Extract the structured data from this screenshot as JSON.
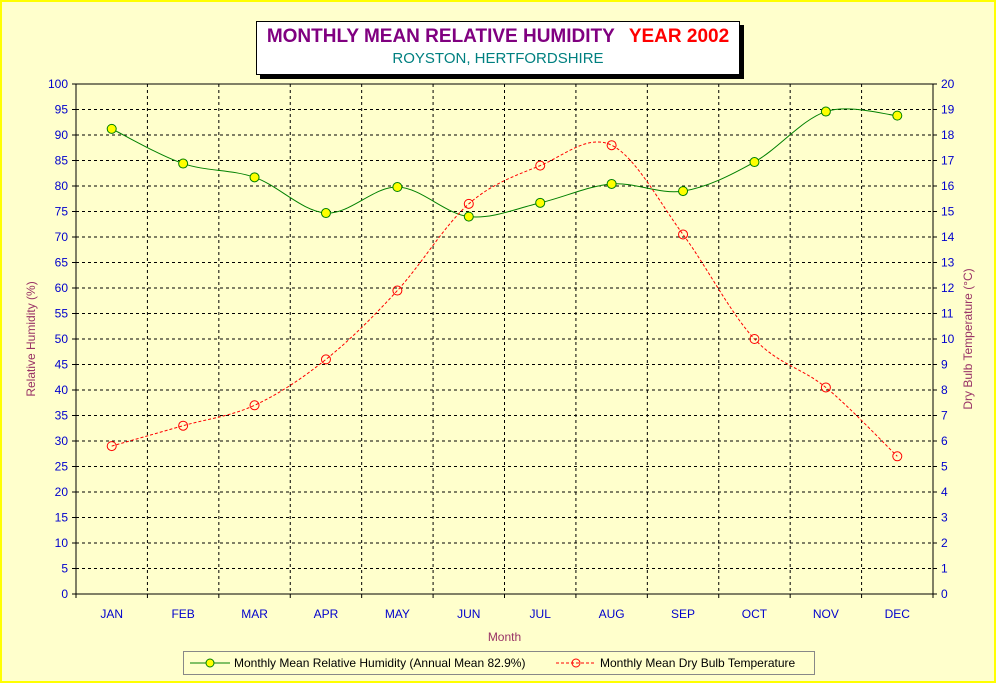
{
  "title": {
    "main": "MONTHLY MEAN RELATIVE HUMIDITY",
    "year": "YEAR 2002",
    "subtitle": "ROYSTON, HERTFORDSHIRE"
  },
  "colors": {
    "background": "#ffffcc",
    "border": "#ffff00",
    "axis_text": "#0000cc",
    "axis_title": "#993366",
    "humidity_line": "#008000",
    "humidity_marker": "#ffff00",
    "temperature_line": "#ff0000"
  },
  "chart_data": {
    "type": "line",
    "categories": [
      "JAN",
      "FEB",
      "MAR",
      "APR",
      "MAY",
      "JUN",
      "JUL",
      "AUG",
      "SEP",
      "OCT",
      "NOV",
      "DEC"
    ],
    "xlabel": "Month",
    "ylabel": "Relative Humidity (%)",
    "y2label": "Dry Bulb Temperature (°C)",
    "ylim": [
      0,
      100
    ],
    "y2lim": [
      0,
      20
    ],
    "yticks": [
      0,
      5,
      10,
      15,
      20,
      25,
      30,
      35,
      40,
      45,
      50,
      55,
      60,
      65,
      70,
      75,
      80,
      85,
      90,
      95,
      100
    ],
    "y2ticks": [
      0,
      1,
      2,
      3,
      4,
      5,
      6,
      7,
      8,
      9,
      10,
      11,
      12,
      13,
      14,
      15,
      16,
      17,
      18,
      19,
      20
    ],
    "grid": true,
    "legend_position": "bottom",
    "series": [
      {
        "name": "Monthly Mean Relative Humidity (Annual Mean 82.9%)",
        "axis": "left",
        "style": "solid-smooth-filled-markers",
        "values": [
          91.2,
          84.4,
          81.7,
          74.7,
          79.8,
          74.0,
          76.7,
          80.4,
          79.0,
          84.7,
          94.6,
          93.8
        ]
      },
      {
        "name": "Monthly Mean Dry Bulb Temperature",
        "axis": "right",
        "style": "dashed-smooth-open-markers",
        "values": [
          5.8,
          6.6,
          7.4,
          9.2,
          11.9,
          15.3,
          16.8,
          17.6,
          14.1,
          10.0,
          8.1,
          5.4
        ]
      }
    ]
  }
}
